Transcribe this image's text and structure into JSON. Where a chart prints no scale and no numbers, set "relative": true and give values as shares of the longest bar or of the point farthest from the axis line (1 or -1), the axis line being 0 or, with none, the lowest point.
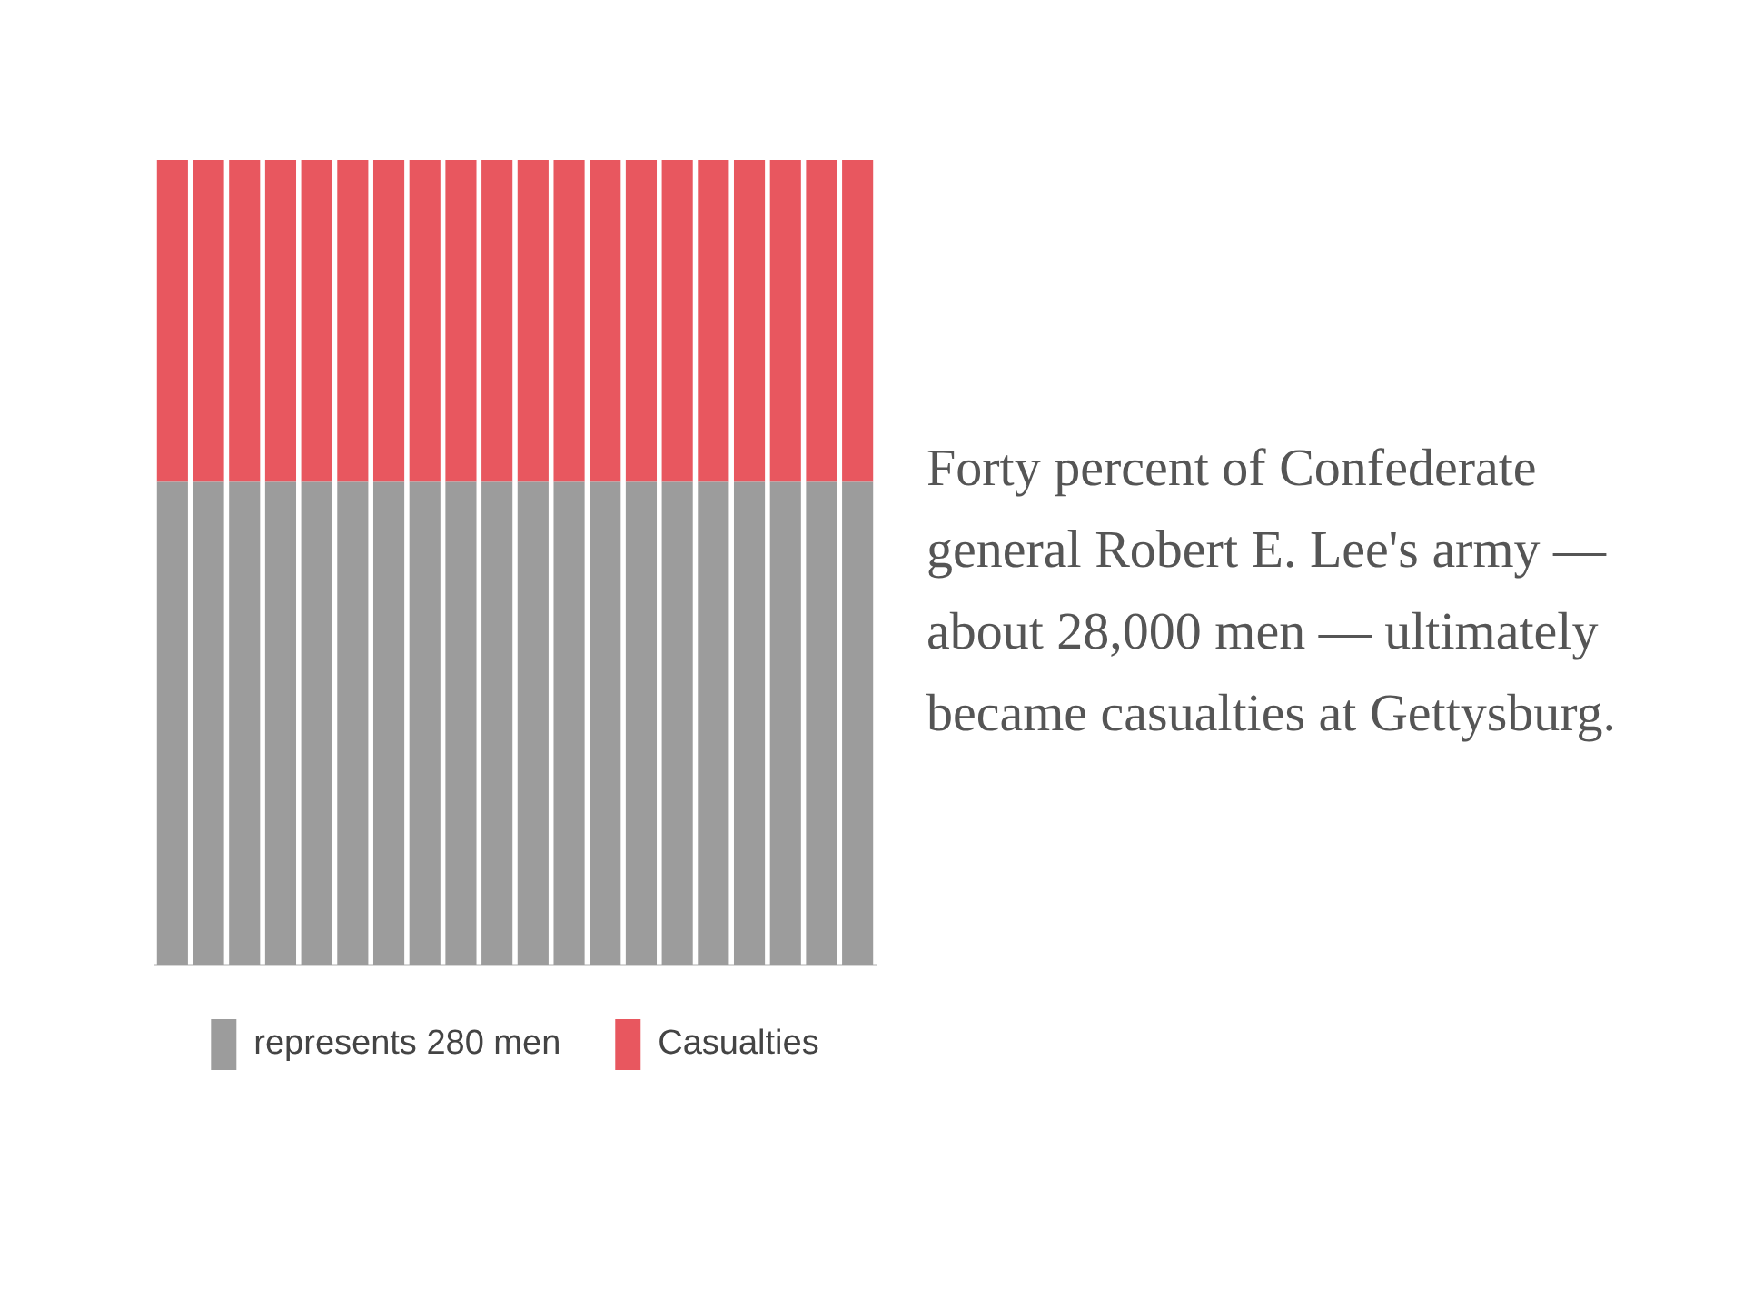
{
  "chart_data": {
    "type": "bar",
    "stacked": true,
    "relative": true,
    "categories": [
      null,
      null,
      null,
      null,
      null,
      null,
      null,
      null,
      null,
      null,
      null,
      null,
      null,
      null,
      null,
      null,
      null,
      null,
      null,
      null
    ],
    "series": [
      {
        "name": "represents 280 men",
        "color": "#9c9c9c",
        "values": [
          0.6,
          0.6,
          0.6,
          0.6,
          0.6,
          0.6,
          0.6,
          0.6,
          0.6,
          0.6,
          0.6,
          0.6,
          0.6,
          0.6,
          0.6,
          0.6,
          0.6,
          0.6,
          0.6,
          0.6
        ]
      },
      {
        "name": "Casualties",
        "color": "#e8575f",
        "values": [
          0.4,
          0.4,
          0.4,
          0.4,
          0.4,
          0.4,
          0.4,
          0.4,
          0.4,
          0.4,
          0.4,
          0.4,
          0.4,
          0.4,
          0.4,
          0.4,
          0.4,
          0.4,
          0.4,
          0.4
        ]
      }
    ],
    "legend": "bottom",
    "annotations": [
      "Forty percent of Confederate general Robert E. Lee's army — about 28,000 men — ultimately became casualties at Gettysburg."
    ]
  }
}
